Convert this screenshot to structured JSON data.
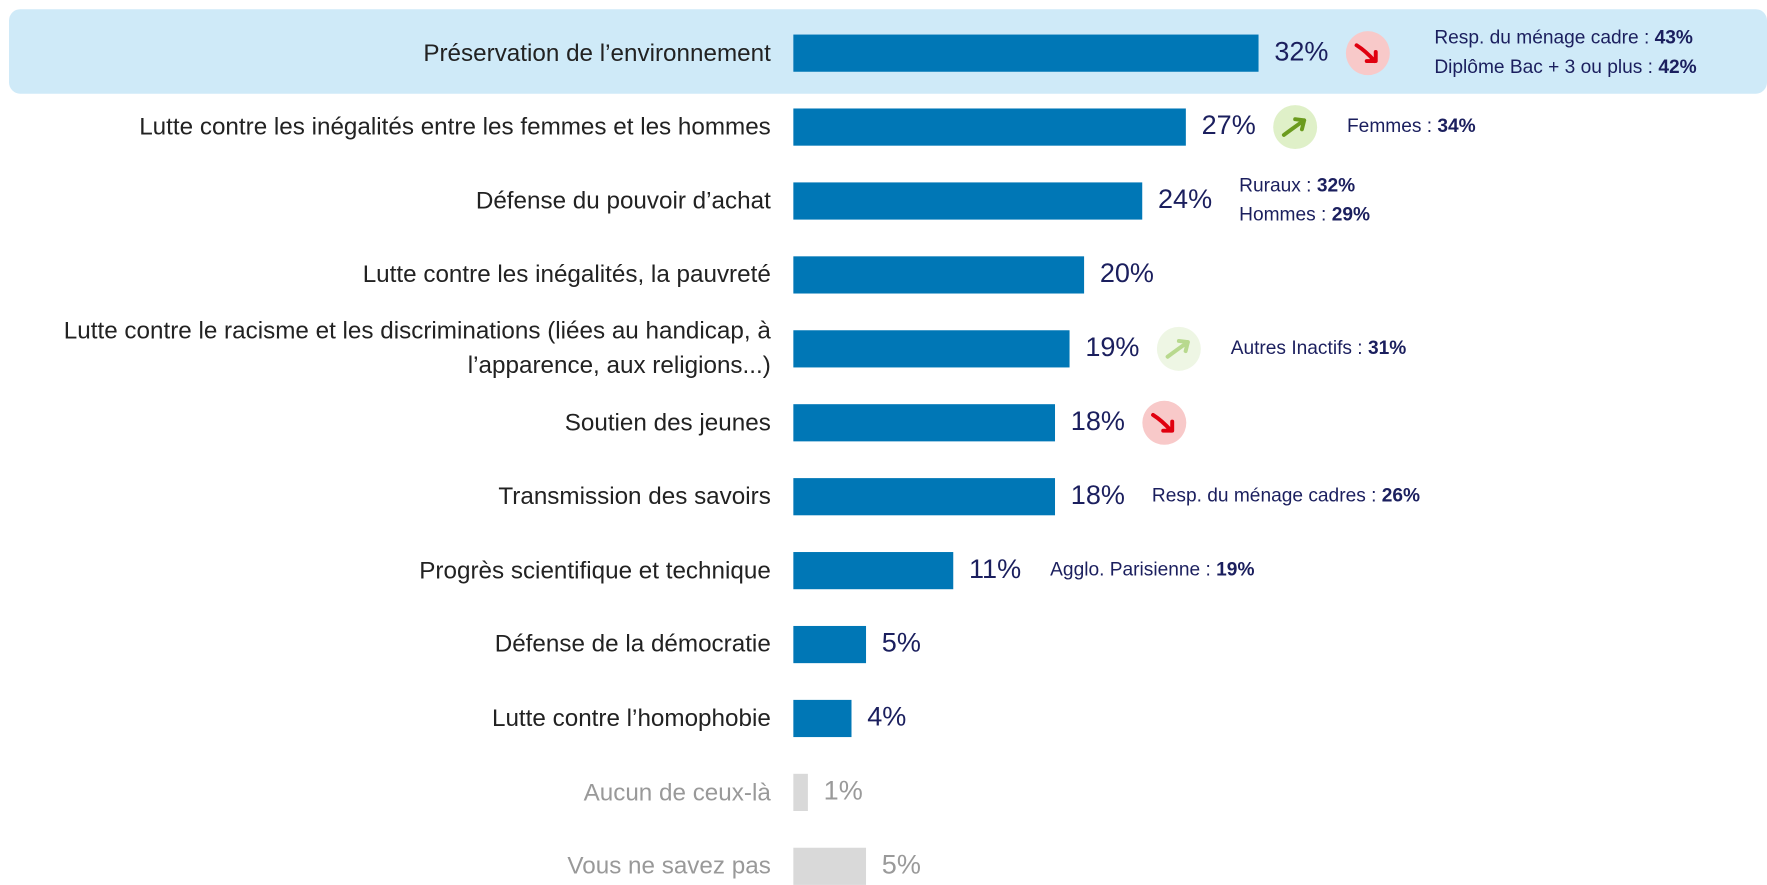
{
  "chart_data": {
    "type": "bar",
    "categories": [
      "Préservation de l’environnement",
      "Lutte contre les inégalités entre les femmes et les hommes",
      "Défense du pouvoir d’achat",
      "Lutte contre les inégalités, la pauvreté",
      "Lutte contre le racisme et les discriminations (liées au handicap, à l’apparence, aux religions...)",
      "Soutien des jeunes",
      "Transmission des savoirs",
      "Progrès scientifique et technique",
      "Défense de la démocratie",
      "Lutte contre l’homophobie",
      "Aucun de ceux-là",
      "Vous ne savez pas"
    ],
    "values": [
      32,
      27,
      24,
      20,
      19,
      18,
      18,
      11,
      5,
      4,
      1,
      5
    ],
    "value_labels": [
      "32%",
      "27%",
      "24%",
      "20%",
      "19%",
      "18%",
      "18%",
      "11%",
      "5%",
      "4%",
      "1%",
      "5%"
    ],
    "colors": [
      "#0077b6",
      "#0077b6",
      "#0077b6",
      "#0077b6",
      "#0077b6",
      "#0077b6",
      "#0077b6",
      "#0077b6",
      "#0077b6",
      "#0077b6",
      "#d9d9d9",
      "#d9d9d9"
    ],
    "muted": [
      false,
      false,
      false,
      false,
      false,
      false,
      false,
      false,
      false,
      false,
      true,
      true
    ],
    "trends": [
      "down",
      "up",
      null,
      null,
      "up-light",
      "down",
      null,
      null,
      null,
      null,
      null,
      null
    ],
    "highlight": 0,
    "annotations": [
      [
        {
          "label": "Resp. du ménage cadre :",
          "value": 43,
          "value_label": "43%"
        },
        {
          "label": "Diplôme Bac + 3 ou plus :",
          "value": 42,
          "value_label": "42%"
        }
      ],
      [
        {
          "label": "Femmes :",
          "value": 34,
          "value_label": "34%"
        }
      ],
      [
        {
          "label": "Ruraux :",
          "value": 32,
          "value_label": "32%"
        },
        {
          "label": "Hommes :",
          "value": 29,
          "value_label": "29%"
        }
      ],
      null,
      [
        {
          "label": "Autres Inactifs :",
          "value": 31,
          "value_label": "31%"
        }
      ],
      null,
      [
        {
          "label": "Resp. du ménage cadres :",
          "value": 26,
          "value_label": "26%"
        }
      ],
      [
        {
          "label": "Agglo. Parisienne :",
          "value": 19,
          "value_label": "19%"
        }
      ],
      null,
      null,
      null,
      null
    ]
  }
}
